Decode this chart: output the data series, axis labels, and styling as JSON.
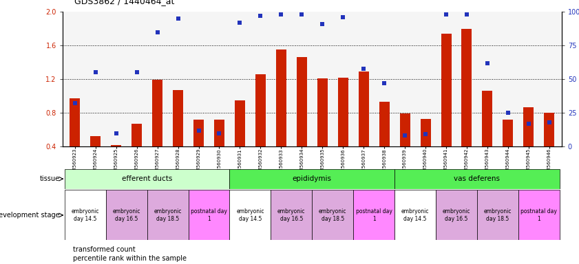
{
  "title": "GDS3862 / 1440464_at",
  "samples": [
    "GSM560923",
    "GSM560924",
    "GSM560925",
    "GSM560926",
    "GSM560927",
    "GSM560928",
    "GSM560929",
    "GSM560930",
    "GSM560931",
    "GSM560932",
    "GSM560933",
    "GSM560934",
    "GSM560935",
    "GSM560936",
    "GSM560937",
    "GSM560938",
    "GSM560939",
    "GSM560940",
    "GSM560941",
    "GSM560942",
    "GSM560943",
    "GSM560944",
    "GSM560945",
    "GSM560946"
  ],
  "transformed_count": [
    0.97,
    0.52,
    0.42,
    0.67,
    1.19,
    1.07,
    0.72,
    0.72,
    0.95,
    1.26,
    1.55,
    1.46,
    1.21,
    1.22,
    1.29,
    0.93,
    0.79,
    0.73,
    1.74,
    1.8,
    1.06,
    0.72,
    0.87,
    0.8
  ],
  "percentile_rank": [
    32,
    55,
    10,
    55,
    85,
    95,
    12,
    10,
    92,
    97,
    98,
    98,
    91,
    96,
    58,
    47,
    8,
    9,
    98,
    98,
    62,
    25,
    17,
    18
  ],
  "bar_color": "#cc2200",
  "dot_color": "#2233bb",
  "ylim_left": [
    0.4,
    2.0
  ],
  "ylim_right": [
    0,
    100
  ],
  "yticks_left": [
    0.4,
    0.8,
    1.2,
    1.6,
    2.0
  ],
  "yticks_right": [
    0,
    25,
    50,
    75,
    100
  ],
  "grid_yticks": [
    0.8,
    1.2,
    1.6
  ],
  "bg_color": "#ffffff",
  "plot_bg": "#f5f5f5",
  "bar_width": 0.5,
  "dot_size": 20,
  "tissue_groups": [
    {
      "name": "efferent ducts",
      "start": 0,
      "end": 7,
      "color": "#ccffcc"
    },
    {
      "name": "epididymis",
      "start": 8,
      "end": 15,
      "color": "#55ee55"
    },
    {
      "name": "vas deferens",
      "start": 16,
      "end": 23,
      "color": "#55ee55"
    }
  ],
  "dev_groups": [
    {
      "name": "embryonic\nday 14.5",
      "start": 0,
      "end": 1,
      "color": "#ffffff"
    },
    {
      "name": "embryonic\nday 16.5",
      "start": 2,
      "end": 3,
      "color": "#ddaadd"
    },
    {
      "name": "embryonic\nday 18.5",
      "start": 4,
      "end": 5,
      "color": "#ddaadd"
    },
    {
      "name": "postnatal day\n1",
      "start": 6,
      "end": 7,
      "color": "#ff88ff"
    },
    {
      "name": "embryonic\nday 14.5",
      "start": 8,
      "end": 9,
      "color": "#ffffff"
    },
    {
      "name": "embryonic\nday 16.5",
      "start": 10,
      "end": 11,
      "color": "#ddaadd"
    },
    {
      "name": "embryonic\nday 18.5",
      "start": 12,
      "end": 13,
      "color": "#ddaadd"
    },
    {
      "name": "postnatal day\n1",
      "start": 14,
      "end": 15,
      "color": "#ff88ff"
    },
    {
      "name": "embryonic\nday 14.5",
      "start": 16,
      "end": 17,
      "color": "#ffffff"
    },
    {
      "name": "embryonic\nday 16.5",
      "start": 18,
      "end": 19,
      "color": "#ddaadd"
    },
    {
      "name": "embryonic\nday 18.5",
      "start": 20,
      "end": 21,
      "color": "#ddaadd"
    },
    {
      "name": "postnatal day\n1",
      "start": 22,
      "end": 23,
      "color": "#ff88ff"
    }
  ],
  "label_tissue": "tissue",
  "label_devstage": "development stage",
  "legend_bar": "transformed count",
  "legend_dot": "percentile rank within the sample"
}
